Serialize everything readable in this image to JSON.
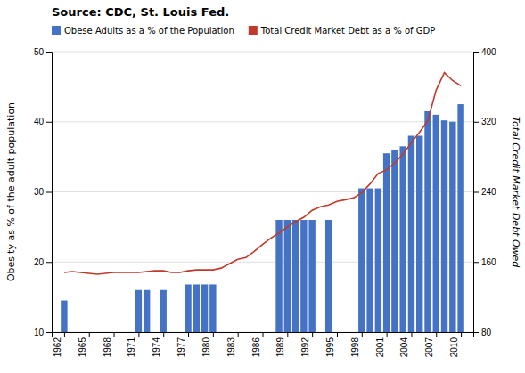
{
  "chart_data": {
    "type": "bar",
    "title": "Source: CDC, St. Louis Fed.",
    "ylabel": "Obesity as % of the adult population",
    "y2label": "Total Credit Market Debt Owed",
    "xlim": [
      1960.5,
      2011.5
    ],
    "xticks": [
      1962,
      1965,
      1968,
      1971,
      1974,
      1977,
      1980,
      1983,
      1986,
      1989,
      1992,
      1995,
      1998,
      2001,
      2004,
      2007,
      2010
    ],
    "ylim": [
      10,
      50
    ],
    "yticks": [
      10,
      20,
      30,
      40,
      50
    ],
    "y2lim": [
      80,
      400
    ],
    "y2ticks": [
      80,
      160,
      240,
      320,
      400
    ],
    "grid": true,
    "legend": "top-left",
    "series": [
      {
        "name": "Obese Adults as a % of the Population",
        "type": "bar",
        "axis": "y",
        "color": "#4472c4",
        "x": [
          1962,
          1971,
          1972,
          1974,
          1977,
          1978,
          1979,
          1980,
          1988,
          1989,
          1990,
          1991,
          1992,
          1994,
          1998,
          1999,
          2000,
          2001,
          2002,
          2003,
          2004,
          2005,
          2006,
          2007,
          2008,
          2009,
          2010
        ],
        "values": [
          14.5,
          16.0,
          16.0,
          16.0,
          16.8,
          16.8,
          16.8,
          16.8,
          26.0,
          26.0,
          26.0,
          26.0,
          26.0,
          26.0,
          30.5,
          30.5,
          30.5,
          35.5,
          36.0,
          36.5,
          38.0,
          38.0,
          41.5,
          41.0,
          40.2,
          40.0,
          42.5
        ]
      },
      {
        "name": "Total Credit Market Debt as a % of GDP",
        "type": "line",
        "axis": "y2",
        "color": "#c0392b",
        "x": [
          1962,
          1963,
          1964,
          1965,
          1966,
          1967,
          1968,
          1969,
          1970,
          1971,
          1972,
          1973,
          1974,
          1975,
          1976,
          1977,
          1978,
          1979,
          1980,
          1981,
          1982,
          1983,
          1984,
          1985,
          1986,
          1987,
          1988,
          1989,
          1990,
          1991,
          1992,
          1993,
          1994,
          1995,
          1996,
          1997,
          1998,
          1999,
          2000,
          2001,
          2002,
          2003,
          2004,
          2005,
          2006,
          2007,
          2008,
          2009,
          2010
        ],
        "values": [
          148,
          149,
          148,
          147,
          146,
          147,
          148,
          148,
          148,
          148,
          149,
          150,
          150,
          148,
          148,
          150,
          151,
          151,
          151,
          153,
          158,
          163,
          165,
          172,
          180,
          187,
          193,
          200,
          206,
          211,
          219,
          223,
          225,
          229,
          231,
          233,
          239,
          249,
          261,
          265,
          273,
          283,
          296,
          308,
          321,
          356,
          376,
          367,
          361
        ]
      }
    ]
  }
}
